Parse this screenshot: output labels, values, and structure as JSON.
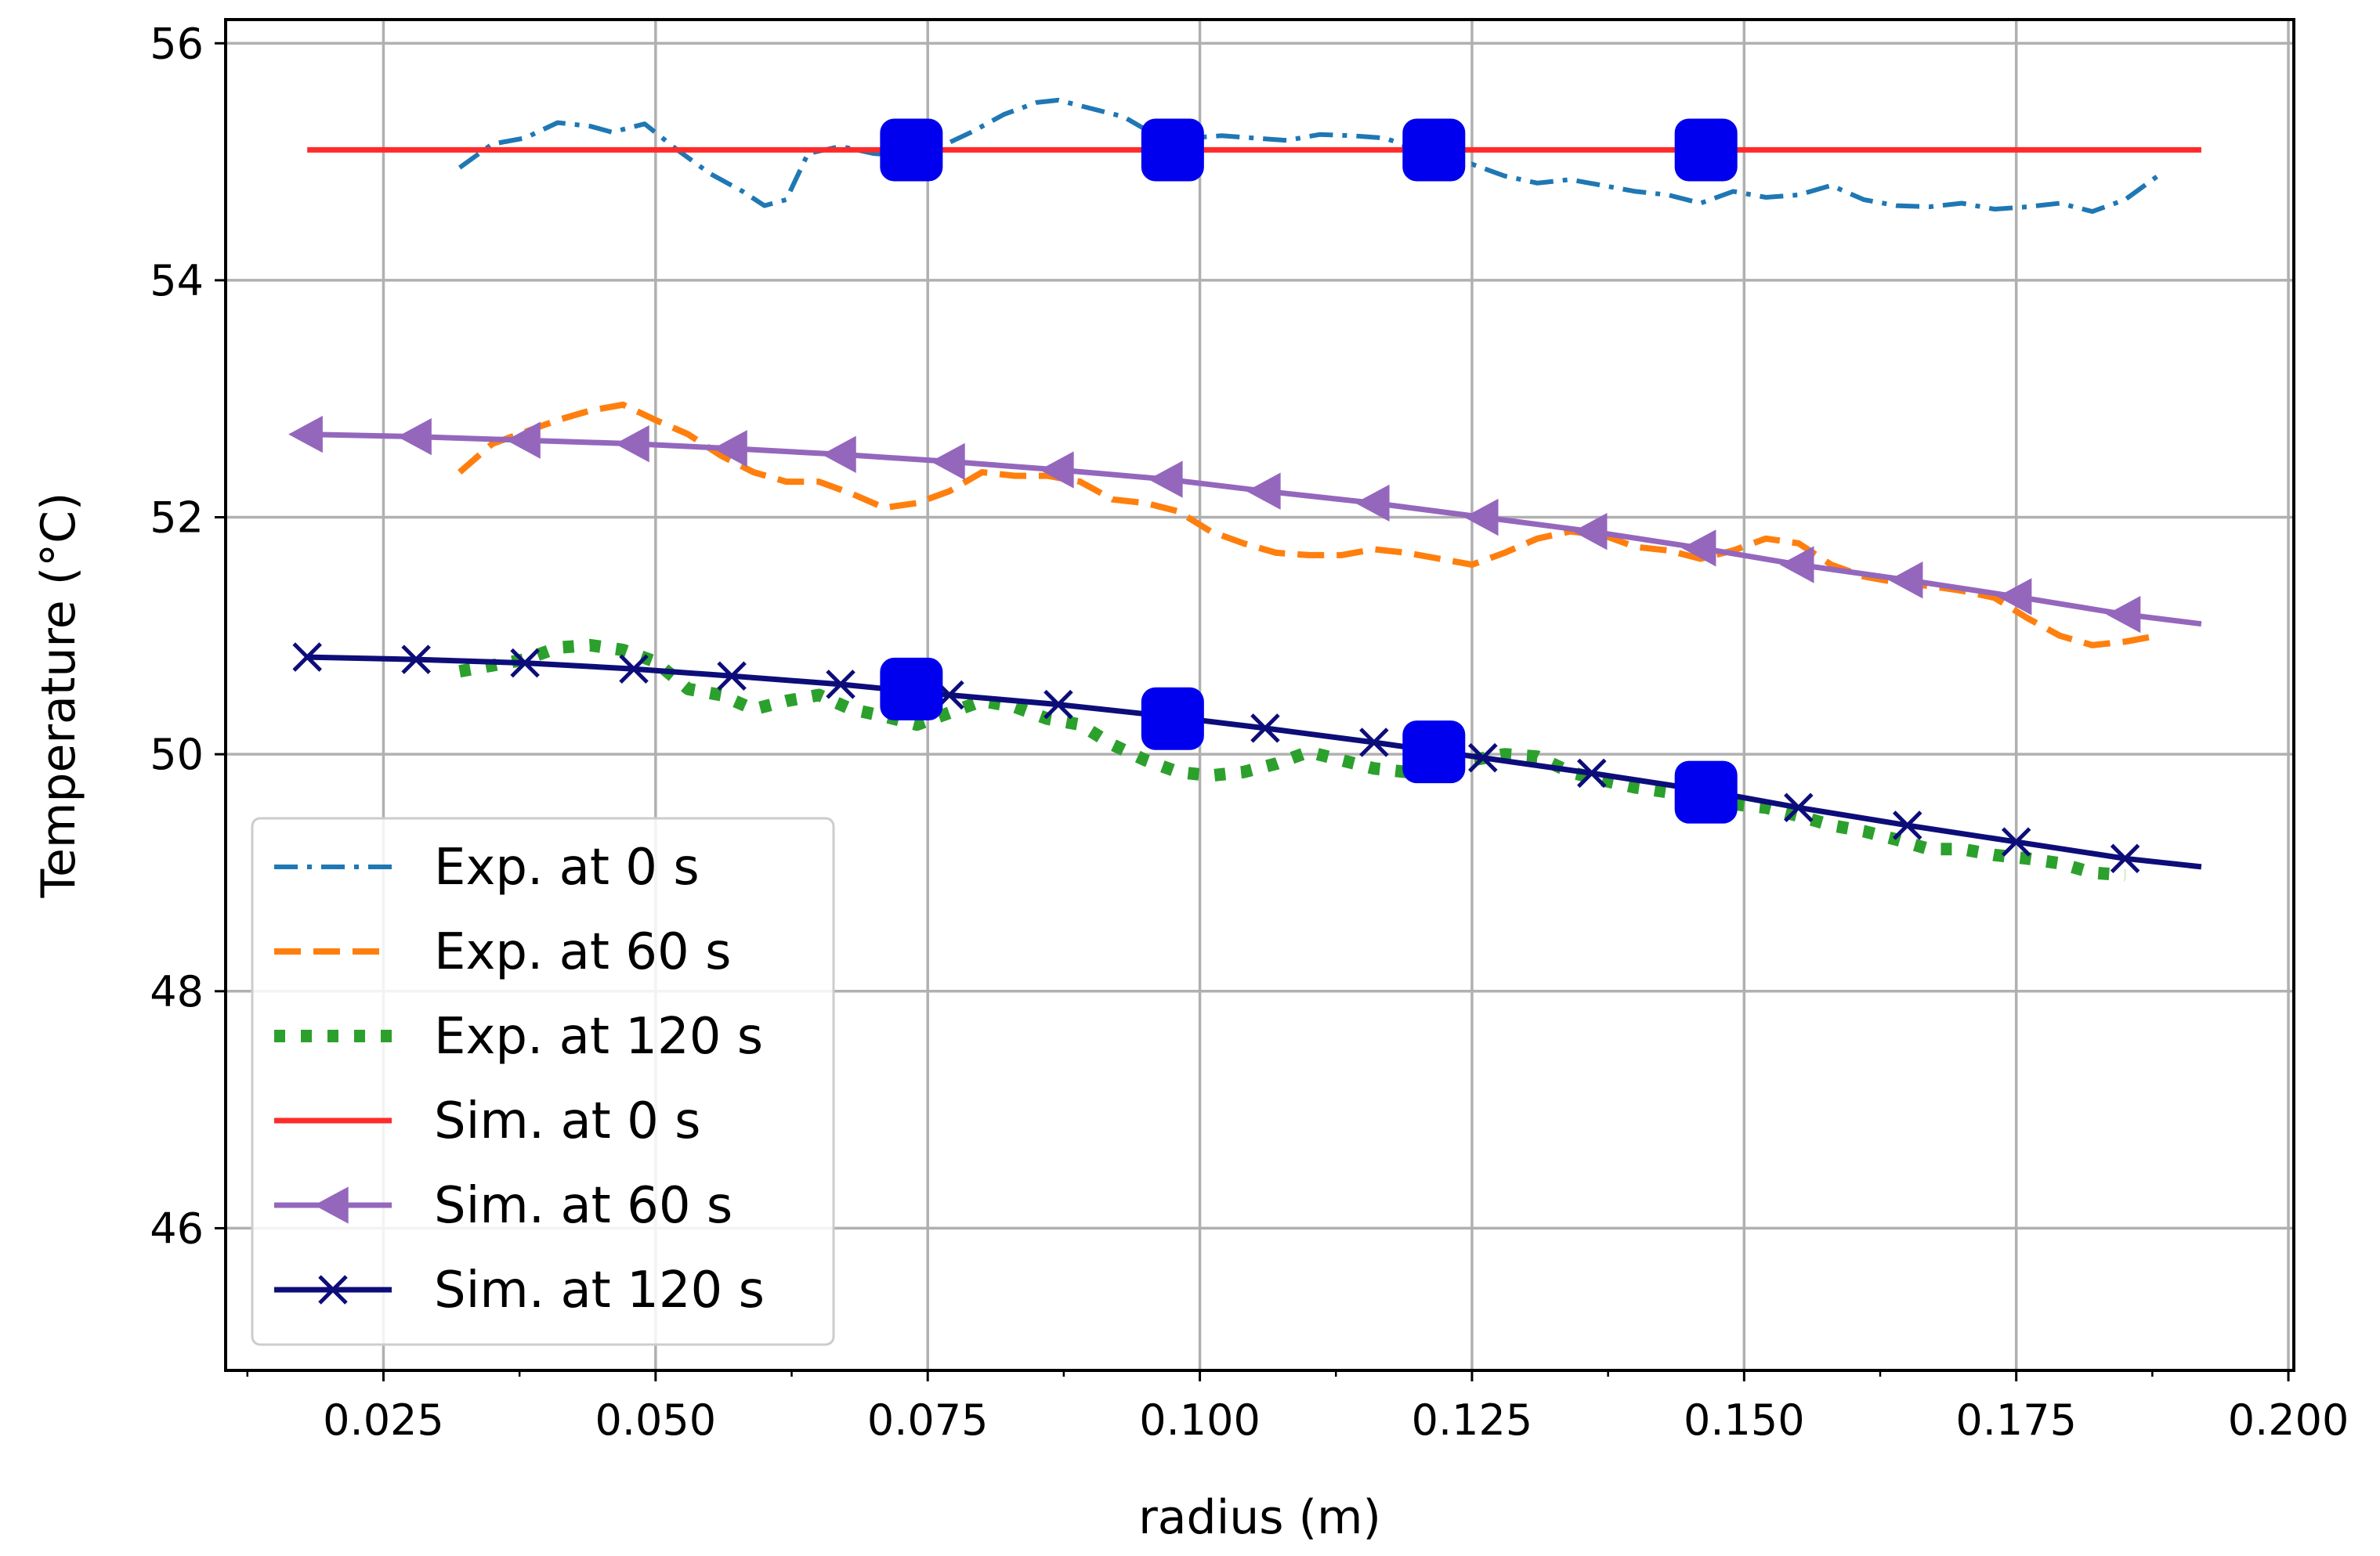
{
  "chart_data": {
    "type": "line",
    "title": "",
    "xlabel": "radius (m)",
    "ylabel": "Temperature (",
    "ylabel_unit": "°C)",
    "xlim": [
      0.0105,
      0.2005
    ],
    "ylim": [
      44.8,
      56.2
    ],
    "grid": true,
    "legend_position": "lower-left",
    "x_ticks": [
      0.025,
      0.05,
      0.075,
      0.1,
      0.125,
      0.15,
      0.175,
      0.2
    ],
    "x_tick_labels": [
      "0.025",
      "0.050",
      "0.075",
      "0.100",
      "0.125",
      "0.150",
      "0.175",
      "0.200"
    ],
    "x_minor_ticks": [
      0.0125,
      0.0375,
      0.0625,
      0.0875,
      0.1125,
      0.1375,
      0.1625,
      0.1875
    ],
    "y_ticks": [
      46,
      48,
      50,
      52,
      54,
      56
    ],
    "y_tick_labels": [
      "46",
      "48",
      "50",
      "52",
      "54",
      "56"
    ],
    "series": [
      {
        "name": "Exp. at 0 s",
        "color": "#1f77b4",
        "style": "dashdot",
        "x": [
          0.032,
          0.035,
          0.038,
          0.041,
          0.044,
          0.046,
          0.049,
          0.052,
          0.055,
          0.058,
          0.06,
          0.062,
          0.064,
          0.067,
          0.07,
          0.073,
          0.076,
          0.079,
          0.082,
          0.085,
          0.087,
          0.09,
          0.093,
          0.096,
          0.099,
          0.102,
          0.105,
          0.108,
          0.111,
          0.114,
          0.117,
          0.12,
          0.122,
          0.125,
          0.128,
          0.131,
          0.134,
          0.137,
          0.14,
          0.143,
          0.146,
          0.149,
          0.152,
          0.155,
          0.158,
          0.161,
          0.164,
          0.167,
          0.17,
          0.173,
          0.176,
          0.179,
          0.182,
          0.185,
          0.188
        ],
        "values": [
          54.95,
          55.15,
          55.2,
          55.33,
          55.3,
          55.25,
          55.32,
          55.1,
          54.9,
          54.75,
          54.63,
          54.68,
          55.07,
          55.13,
          55.07,
          55.05,
          55.12,
          55.25,
          55.4,
          55.5,
          55.52,
          55.45,
          55.38,
          55.22,
          55.2,
          55.22,
          55.2,
          55.18,
          55.23,
          55.22,
          55.2,
          55.1,
          54.92,
          54.98,
          54.88,
          54.82,
          54.85,
          54.8,
          54.75,
          54.72,
          54.65,
          54.75,
          54.7,
          54.72,
          54.8,
          54.68,
          54.63,
          54.62,
          54.65,
          54.6,
          54.62,
          54.65,
          54.58,
          54.68,
          54.88
        ]
      },
      {
        "name": "Exp. at 60 s",
        "color": "#ff7f0e",
        "style": "dashed",
        "x": [
          0.032,
          0.035,
          0.038,
          0.041,
          0.044,
          0.047,
          0.05,
          0.053,
          0.056,
          0.059,
          0.062,
          0.065,
          0.068,
          0.071,
          0.074,
          0.077,
          0.08,
          0.083,
          0.086,
          0.089,
          0.092,
          0.095,
          0.098,
          0.101,
          0.104,
          0.107,
          0.11,
          0.113,
          0.116,
          0.119,
          0.122,
          0.125,
          0.128,
          0.131,
          0.134,
          0.137,
          0.14,
          0.143,
          0.146,
          0.149,
          0.152,
          0.155,
          0.158,
          0.161,
          0.164,
          0.167,
          0.17,
          0.173,
          0.176,
          0.179,
          0.182,
          0.185,
          0.188
        ],
        "values": [
          52.38,
          52.62,
          52.72,
          52.82,
          52.9,
          52.95,
          52.82,
          52.7,
          52.52,
          52.38,
          52.3,
          52.3,
          52.2,
          52.08,
          52.12,
          52.22,
          52.38,
          52.35,
          52.35,
          52.3,
          52.15,
          52.12,
          52.05,
          51.88,
          51.78,
          51.7,
          51.68,
          51.68,
          51.73,
          51.7,
          51.65,
          51.6,
          51.7,
          51.82,
          51.88,
          51.85,
          51.75,
          51.72,
          51.65,
          51.72,
          51.82,
          51.78,
          51.6,
          51.5,
          51.45,
          51.42,
          51.38,
          51.32,
          51.15,
          51.0,
          50.92,
          50.95,
          51.0
        ]
      },
      {
        "name": "Exp. at 120 s",
        "color": "#2ca02c",
        "style": "dotted",
        "x": [
          0.032,
          0.035,
          0.038,
          0.041,
          0.044,
          0.047,
          0.05,
          0.053,
          0.056,
          0.059,
          0.062,
          0.065,
          0.068,
          0.071,
          0.074,
          0.077,
          0.08,
          0.083,
          0.086,
          0.089,
          0.092,
          0.095,
          0.098,
          0.101,
          0.104,
          0.107,
          0.11,
          0.113,
          0.116,
          0.119,
          0.122,
          0.125,
          0.128,
          0.131,
          0.134,
          0.137,
          0.14,
          0.143,
          0.146,
          0.149,
          0.152,
          0.155,
          0.158,
          0.161,
          0.164,
          0.167,
          0.17,
          0.173,
          0.176,
          0.179,
          0.182,
          0.185
        ],
        "values": [
          50.7,
          50.75,
          50.8,
          50.9,
          50.92,
          50.88,
          50.78,
          50.55,
          50.5,
          50.38,
          50.45,
          50.5,
          50.38,
          50.32,
          50.25,
          50.35,
          50.45,
          50.4,
          50.3,
          50.25,
          50.08,
          49.95,
          49.85,
          49.82,
          49.85,
          49.92,
          50.02,
          49.95,
          49.88,
          49.85,
          49.9,
          49.95,
          50.0,
          49.98,
          49.85,
          49.78,
          49.72,
          49.68,
          49.62,
          49.58,
          49.55,
          49.48,
          49.4,
          49.35,
          49.28,
          49.2,
          49.2,
          49.15,
          49.12,
          49.08,
          49.0,
          48.98
        ]
      },
      {
        "name": "Sim. at 0 s",
        "color": "#ff2b2b",
        "style": "solid",
        "x": [
          0.018,
          0.192
        ],
        "values": [
          55.1,
          55.1
        ]
      },
      {
        "name": "Sim. at 60 s",
        "color": "#9467bd",
        "style": "solid",
        "marker": "triangle-left",
        "x": [
          0.018,
          0.028,
          0.038,
          0.048,
          0.057,
          0.067,
          0.077,
          0.087,
          0.097,
          0.106,
          0.116,
          0.126,
          0.136,
          0.146,
          0.155,
          0.165,
          0.175,
          0.185,
          0.192
        ],
        "values": [
          52.7,
          52.68,
          52.65,
          52.62,
          52.58,
          52.53,
          52.47,
          52.4,
          52.32,
          52.22,
          52.12,
          52.0,
          51.88,
          51.74,
          51.6,
          51.47,
          51.33,
          51.18,
          51.1
        ],
        "marker_x": [
          0.018,
          0.028,
          0.038,
          0.048,
          0.057,
          0.067,
          0.077,
          0.087,
          0.097,
          0.106,
          0.116,
          0.126,
          0.136,
          0.146,
          0.155,
          0.165,
          0.175,
          0.185
        ]
      },
      {
        "name": "Sim. at 120 s",
        "color": "#0d0d7a",
        "style": "solid",
        "marker": "x",
        "x": [
          0.018,
          0.028,
          0.038,
          0.048,
          0.057,
          0.067,
          0.077,
          0.087,
          0.097,
          0.106,
          0.116,
          0.126,
          0.136,
          0.146,
          0.155,
          0.165,
          0.175,
          0.185,
          0.192
        ],
        "values": [
          50.82,
          50.8,
          50.77,
          50.72,
          50.66,
          50.59,
          50.5,
          50.42,
          50.32,
          50.22,
          50.1,
          49.97,
          49.84,
          49.7,
          49.55,
          49.4,
          49.26,
          49.12,
          49.05
        ],
        "marker_x": [
          0.018,
          0.028,
          0.038,
          0.048,
          0.057,
          0.067,
          0.077,
          0.087,
          0.097,
          0.106,
          0.116,
          0.126,
          0.136,
          0.146,
          0.155,
          0.165,
          0.175,
          0.185
        ]
      }
    ],
    "highlight_markers": {
      "color": "#0000ee",
      "points": [
        {
          "x": 0.0735,
          "y": 55.1
        },
        {
          "x": 0.0975,
          "y": 55.1
        },
        {
          "x": 0.1215,
          "y": 55.1
        },
        {
          "x": 0.1465,
          "y": 55.1
        },
        {
          "x": 0.0735,
          "y": 50.55
        },
        {
          "x": 0.0975,
          "y": 50.3
        },
        {
          "x": 0.1215,
          "y": 50.02
        },
        {
          "x": 0.1465,
          "y": 49.68
        }
      ]
    }
  }
}
